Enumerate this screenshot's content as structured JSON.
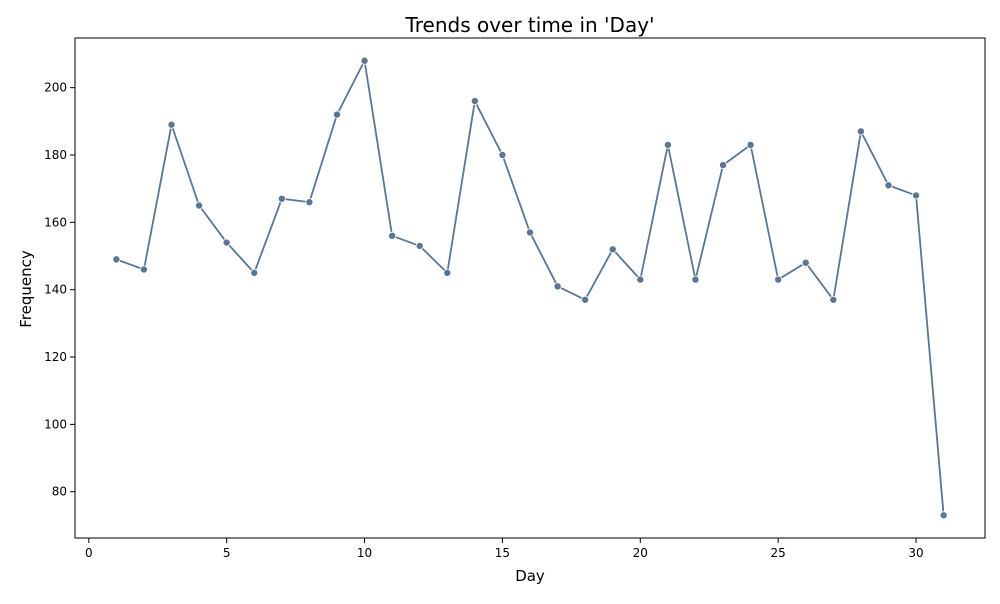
{
  "chart_data": {
    "type": "line",
    "title": "Trends over time in 'Day'",
    "xlabel": "Day",
    "ylabel": "Frequency",
    "xlim": [
      -0.5,
      32.5
    ],
    "ylim": [
      66.25,
      214.75
    ],
    "xticks": [
      0,
      5,
      10,
      15,
      20,
      25,
      30
    ],
    "yticks": [
      80,
      100,
      120,
      140,
      160,
      180,
      200
    ],
    "grid": false,
    "line_color": "#5a7693",
    "series": [
      {
        "x": [
          1,
          2,
          3,
          4,
          5,
          6,
          7,
          8,
          9,
          10,
          11,
          12,
          13,
          14,
          15,
          16,
          17,
          18,
          19,
          20,
          21,
          22,
          23,
          24,
          25,
          26,
          27,
          28,
          29,
          30,
          31
        ],
        "values": [
          149,
          146,
          189,
          165,
          154,
          145,
          167,
          166,
          192,
          208,
          156,
          153,
          145,
          196,
          180,
          157,
          141,
          137,
          152,
          143,
          183,
          143,
          177,
          183,
          143,
          148,
          137,
          187,
          171,
          168,
          73
        ]
      }
    ]
  }
}
